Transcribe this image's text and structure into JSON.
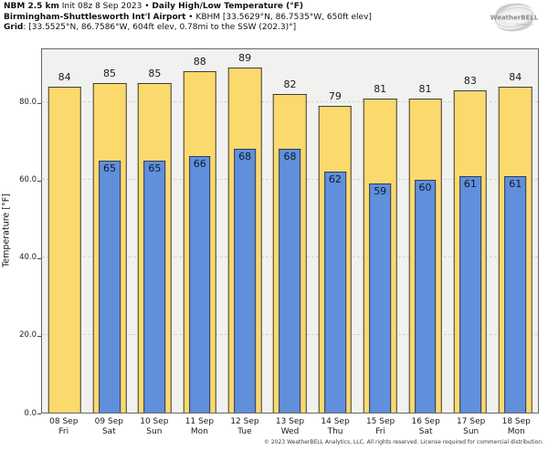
{
  "header": {
    "model": "NBM 2.5 km",
    "init": " Init 08z 8 Sep 2023 • ",
    "product": "Daily High/Low Temperature (°F)",
    "station_name": "Birmingham-Shuttlesworth Int'l Airport",
    "station_meta": " • KBHM [33.5629°N, 86.7535°W, 650ft elev]",
    "grid_label": "Grid",
    "grid_value": ": [33.5525°N, 86.7586°W, 604ft elev, 0.78mi to the SSW (202.3)°]"
  },
  "logo": {
    "icon": "weatherbell-swirl-icon",
    "name": "WeatherBELL",
    "subtext": "Analytics LLC"
  },
  "chart_data": {
    "type": "bar",
    "title": "NBM 2.5 km Daily High/Low Temperature (°F) — KBHM Birmingham-Shuttlesworth Int'l Airport",
    "categories": [
      "08 Sep",
      "09 Sep",
      "10 Sep",
      "11 Sep",
      "12 Sep",
      "13 Sep",
      "14 Sep",
      "15 Sep",
      "16 Sep",
      "17 Sep",
      "18 Sep"
    ],
    "day_labels": [
      "Fri",
      "Sat",
      "Sun",
      "Mon",
      "Tue",
      "Wed",
      "Thu",
      "Fri",
      "Sat",
      "Sun",
      "Mon"
    ],
    "series": [
      {
        "name": "High",
        "color": "#fbd96d",
        "values": [
          84,
          85,
          85,
          88,
          89,
          82,
          79,
          81,
          81,
          83,
          84
        ]
      },
      {
        "name": "Low",
        "color": "#608fdb",
        "values": [
          null,
          65,
          65,
          66,
          68,
          68,
          62,
          59,
          60,
          61,
          61
        ]
      }
    ],
    "xlabel": "",
    "ylabel": "Temperature [°F]",
    "ylim": [
      0,
      94.1
    ],
    "yticks": [
      0,
      20,
      40,
      60,
      80
    ],
    "ytick_labels": [
      "0.0",
      "20.0",
      "40.0",
      "60.0",
      "80.0"
    ],
    "grid": true,
    "legend": false,
    "plot_background": "#f1f1ef",
    "bar_border_color": "#3d3d3d"
  },
  "footer": {
    "copyright": "© 2023 WeatherBELL Analytics, LLC. All rights reserved. License required for commercial distribution."
  }
}
